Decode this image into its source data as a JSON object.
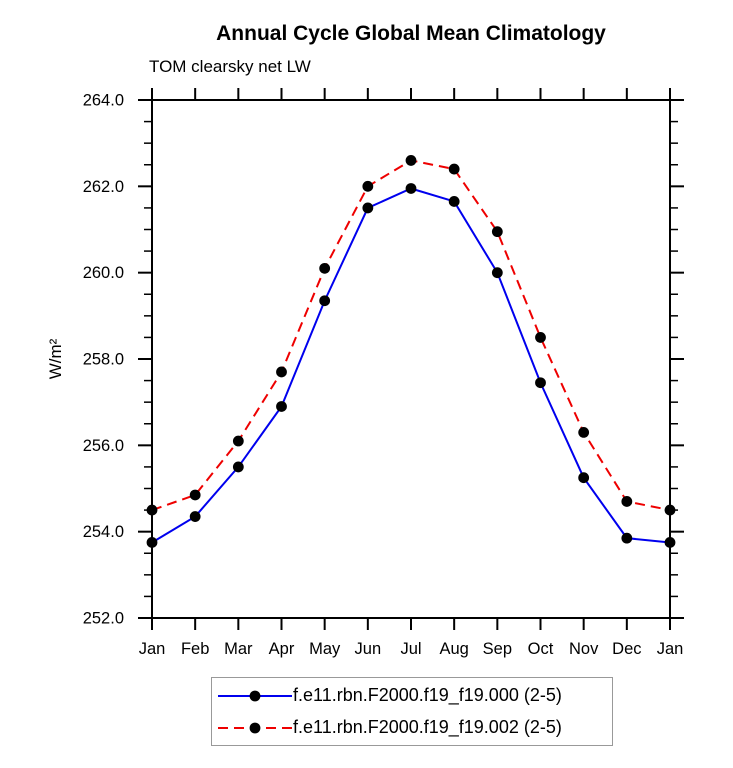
{
  "title": "Annual Cycle Global Mean Climatology",
  "subtitle": "TOM clearsky net LW",
  "chart_data": {
    "type": "line",
    "x_categories": [
      "Jan",
      "Feb",
      "Mar",
      "Apr",
      "May",
      "Jun",
      "Jul",
      "Aug",
      "Sep",
      "Oct",
      "Nov",
      "Dec",
      "Jan"
    ],
    "xlabel": "",
    "ylabel": "W/m²",
    "ylim": [
      252.0,
      264.0
    ],
    "ytick_major": [
      252,
      254,
      256,
      258,
      260,
      262,
      264
    ],
    "ytick_labels": [
      "252.0",
      "254.0",
      "256.0",
      "258.0",
      "260.0",
      "262.0",
      "264.0"
    ],
    "ytick_minor_step": 0.5,
    "grid": false,
    "legend_position": "bottom-center",
    "axis_color": "#000000",
    "marker_shape": "filled-circle",
    "series": [
      {
        "name": "f.e11.rbn.F2000.f19_f19.000 (2-5)",
        "color": "#0000ee",
        "line_style": "solid",
        "marker_color": "#000000",
        "values": [
          253.75,
          254.35,
          255.5,
          256.9,
          259.35,
          261.5,
          261.95,
          261.65,
          260.0,
          257.45,
          255.25,
          253.85,
          253.75
        ]
      },
      {
        "name": "f.e11.rbn.F2000.f19_f19.002 (2-5)",
        "color": "#ee0000",
        "line_style": "dashed",
        "marker_color": "#000000",
        "values": [
          254.5,
          254.85,
          256.1,
          257.7,
          260.1,
          262.0,
          262.6,
          262.4,
          260.95,
          258.5,
          256.3,
          254.7,
          254.5
        ]
      }
    ]
  }
}
